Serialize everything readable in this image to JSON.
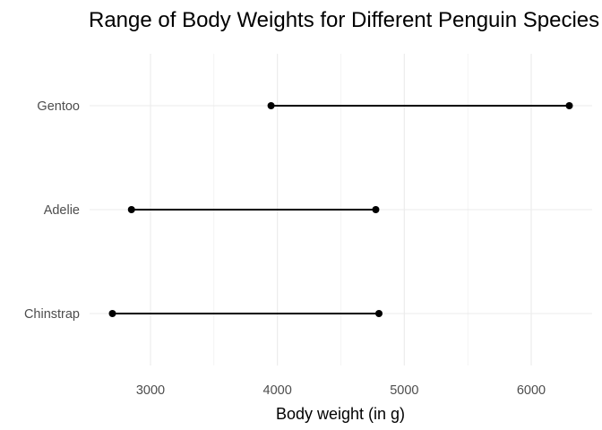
{
  "chart_data": {
    "type": "dumbbell",
    "title": "Range of Body Weights for Different Penguin Species",
    "xlabel": "Body weight (in g)",
    "ylabel": "",
    "xlim": [
      2520,
      6480
    ],
    "x_ticks": [
      3000,
      4000,
      5000,
      6000
    ],
    "x_minor_ticks": [
      3500,
      4500,
      5500
    ],
    "grid": true,
    "legend": "none",
    "categories": [
      "Gentoo",
      "Adelie",
      "Chinstrap"
    ],
    "series": [
      {
        "category": "Gentoo",
        "min": 3950,
        "max": 6300
      },
      {
        "category": "Adelie",
        "min": 2850,
        "max": 4775
      },
      {
        "category": "Chinstrap",
        "min": 2700,
        "max": 4800
      }
    ],
    "colors": {
      "mark": "#000000",
      "grid": "#ebebeb",
      "tick_text": "#4d4d4d"
    }
  }
}
